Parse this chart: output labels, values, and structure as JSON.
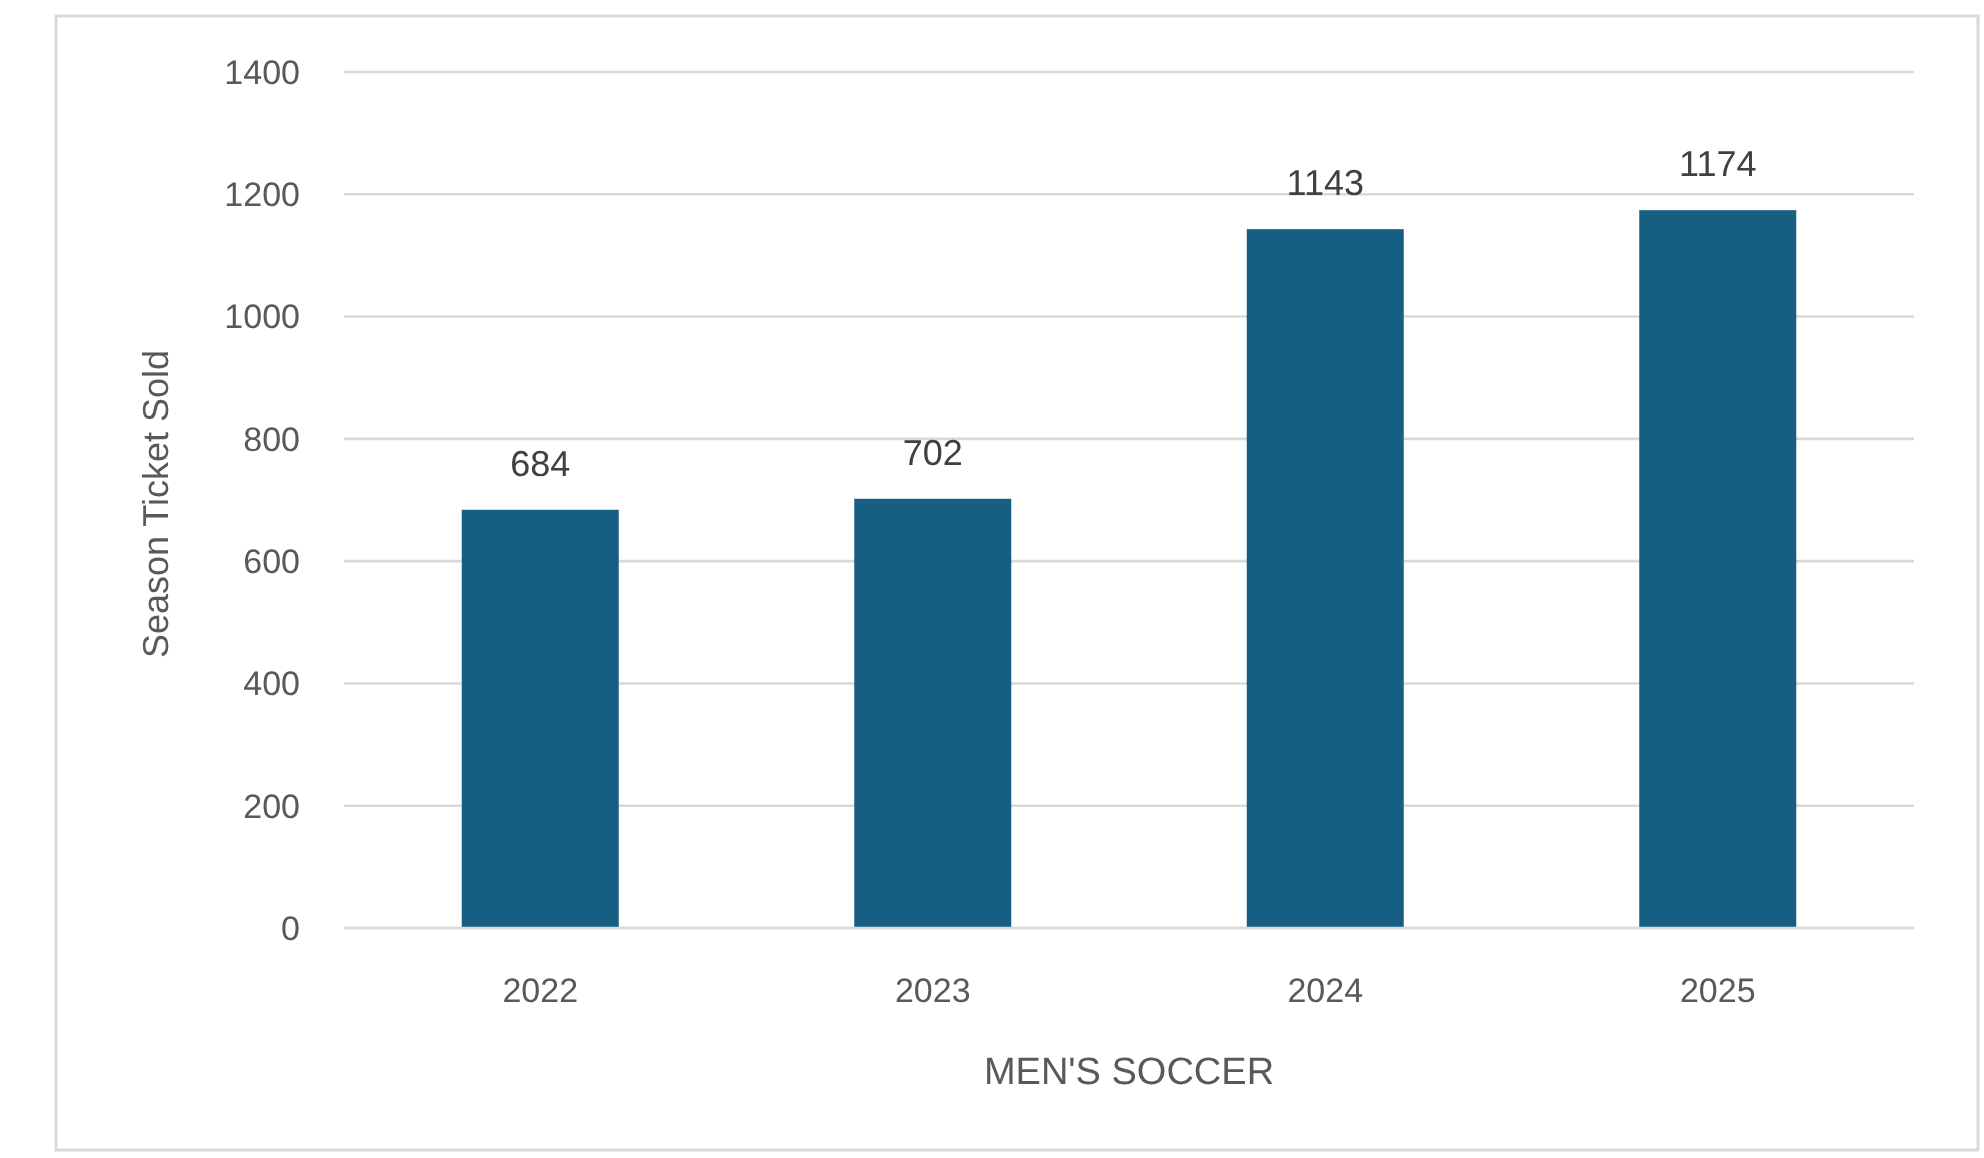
{
  "chart_data": {
    "type": "bar",
    "xlabel": "MEN'S SOCCER",
    "ylabel": "Season Ticket Sold",
    "categories": [
      "2022",
      "2023",
      "2024",
      "2025"
    ],
    "values": [
      684,
      702,
      1143,
      1174
    ],
    "color": "#175f82",
    "ylim": [
      0,
      1400
    ],
    "yticks": [
      0,
      200,
      400,
      600,
      800,
      1000,
      1200,
      1400
    ],
    "grid": "y",
    "data_labels": true
  }
}
